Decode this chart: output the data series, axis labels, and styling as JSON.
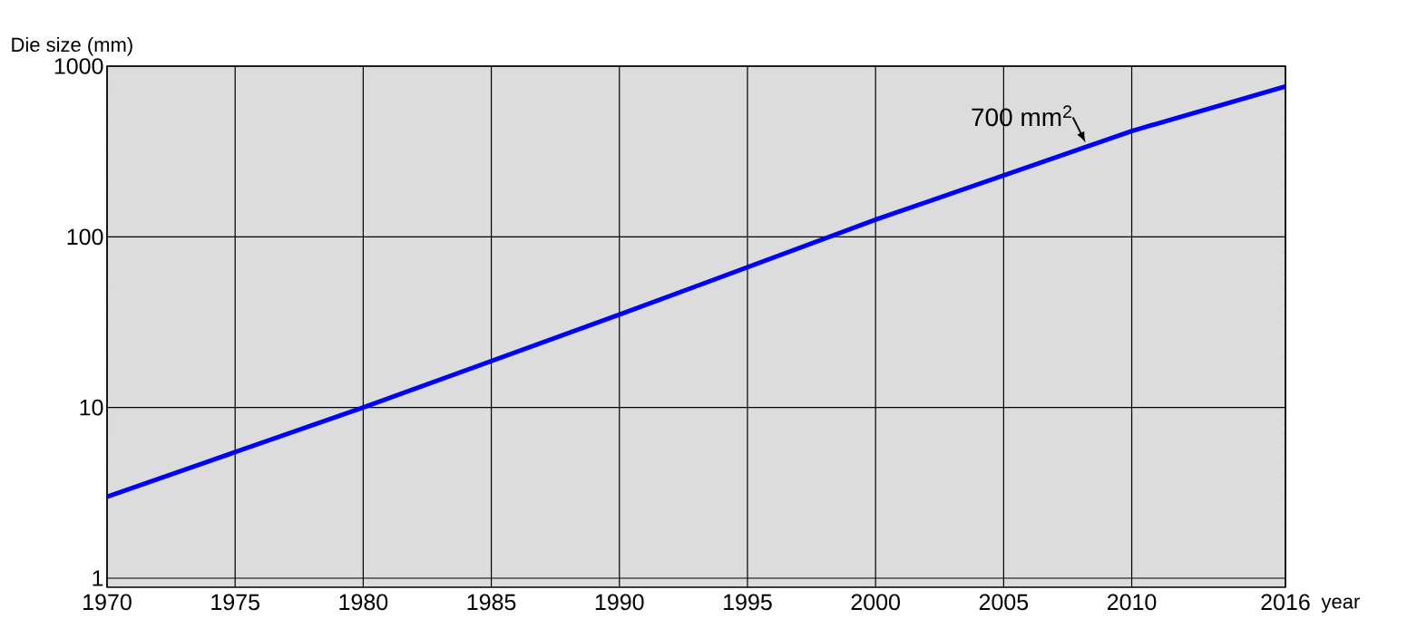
{
  "chart_data": {
    "type": "line",
    "xlabel": "year",
    "ylabel": "Die size (mm)",
    "x": [
      1970,
      1980,
      1990,
      2000,
      2010,
      2016
    ],
    "series": [
      {
        "color": "#0000ff",
        "values": [
          3.0,
          10,
          35,
          126,
          417,
          760
        ]
      }
    ],
    "xlim": [
      1970,
      2016
    ],
    "xticks": [
      1970,
      1975,
      1980,
      1985,
      1990,
      1995,
      2000,
      2005,
      2010,
      2016
    ],
    "ylim": [
      0.885,
      1000
    ],
    "yticks": [
      1,
      10,
      100,
      1000
    ],
    "log": "y",
    "grid": true,
    "marker": "none",
    "line_style": "solid",
    "annotations": [
      {
        "text": "700 mm$^{2}$",
        "x": 2008.2,
        "y": 356
      }
    ]
  }
}
